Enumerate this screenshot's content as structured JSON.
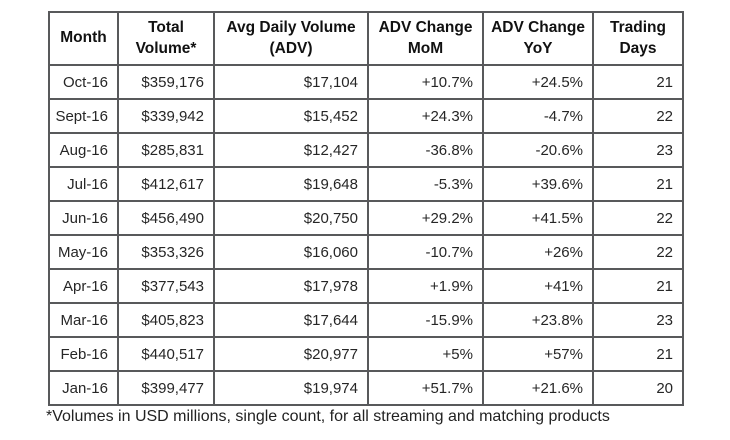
{
  "table": {
    "columns": [
      {
        "key": "month",
        "label": "Month"
      },
      {
        "key": "total-volume",
        "label": "Total Volume*"
      },
      {
        "key": "avg-daily-volume",
        "label": "Avg Daily Volume (ADV)"
      },
      {
        "key": "adv-change-mom",
        "label": "ADV Change MoM"
      },
      {
        "key": "adv-change-yoy",
        "label": "ADV Change YoY"
      },
      {
        "key": "trading-days",
        "label": "Trading Days"
      }
    ],
    "rows": [
      [
        "Oct-16",
        "$359,176",
        "$17,104",
        "+10.7%",
        "+24.5%",
        "21"
      ],
      [
        "Sept-16",
        "$339,942",
        "$15,452",
        "+24.3%",
        "-4.7%",
        "22"
      ],
      [
        "Aug-16",
        "$285,831",
        "$12,427",
        "-36.8%",
        "-20.6%",
        "23"
      ],
      [
        "Jul-16",
        "$412,617",
        "$19,648",
        "-5.3%",
        "+39.6%",
        "21"
      ],
      [
        "Jun-16",
        "$456,490",
        "$20,750",
        "+29.2%",
        "+41.5%",
        "22"
      ],
      [
        "May-16",
        "$353,326",
        "$16,060",
        "-10.7%",
        "+26%",
        "22"
      ],
      [
        "Apr-16",
        "$377,543",
        "$17,978",
        "+1.9%",
        "+41%",
        "21"
      ],
      [
        "Mar-16",
        "$405,823",
        "$17,644",
        "-15.9%",
        "+23.8%",
        "23"
      ],
      [
        "Feb-16",
        "$440,517",
        "$20,977",
        "+5%",
        "+57%",
        "21"
      ],
      [
        "Jan-16",
        "$399,477",
        "$19,974",
        "+51.7%",
        "+21.6%",
        "20"
      ]
    ]
  },
  "footnote": "*Volumes in USD millions, single count, for all streaming and matching products",
  "colors": {
    "border": "#58595b",
    "header_text": "#111111",
    "cell_text": "#262626",
    "background": "#ffffff"
  },
  "chart_data": {
    "type": "table",
    "title": "",
    "categories": [
      "Oct-16",
      "Sept-16",
      "Aug-16",
      "Jul-16",
      "Jun-16",
      "May-16",
      "Apr-16",
      "Mar-16",
      "Feb-16",
      "Jan-16"
    ],
    "series": [
      {
        "name": "Total Volume* (USD millions)",
        "values": [
          359176,
          339942,
          285831,
          412617,
          456490,
          353326,
          377543,
          405823,
          440517,
          399477
        ]
      },
      {
        "name": "Avg Daily Volume (ADV, USD millions)",
        "values": [
          17104,
          15452,
          12427,
          19648,
          20750,
          16060,
          17978,
          17644,
          20977,
          19974
        ]
      },
      {
        "name": "ADV Change MoM (%)",
        "values": [
          10.7,
          24.3,
          -36.8,
          -5.3,
          29.2,
          -10.7,
          1.9,
          -15.9,
          5,
          51.7
        ]
      },
      {
        "name": "ADV Change YoY (%)",
        "values": [
          24.5,
          -4.7,
          -20.6,
          39.6,
          41.5,
          26,
          41,
          23.8,
          57,
          21.6
        ]
      },
      {
        "name": "Trading Days",
        "values": [
          21,
          22,
          23,
          21,
          22,
          22,
          21,
          23,
          21,
          20
        ]
      }
    ],
    "footnote": "*Volumes in USD millions, single count, for all streaming and matching products"
  }
}
